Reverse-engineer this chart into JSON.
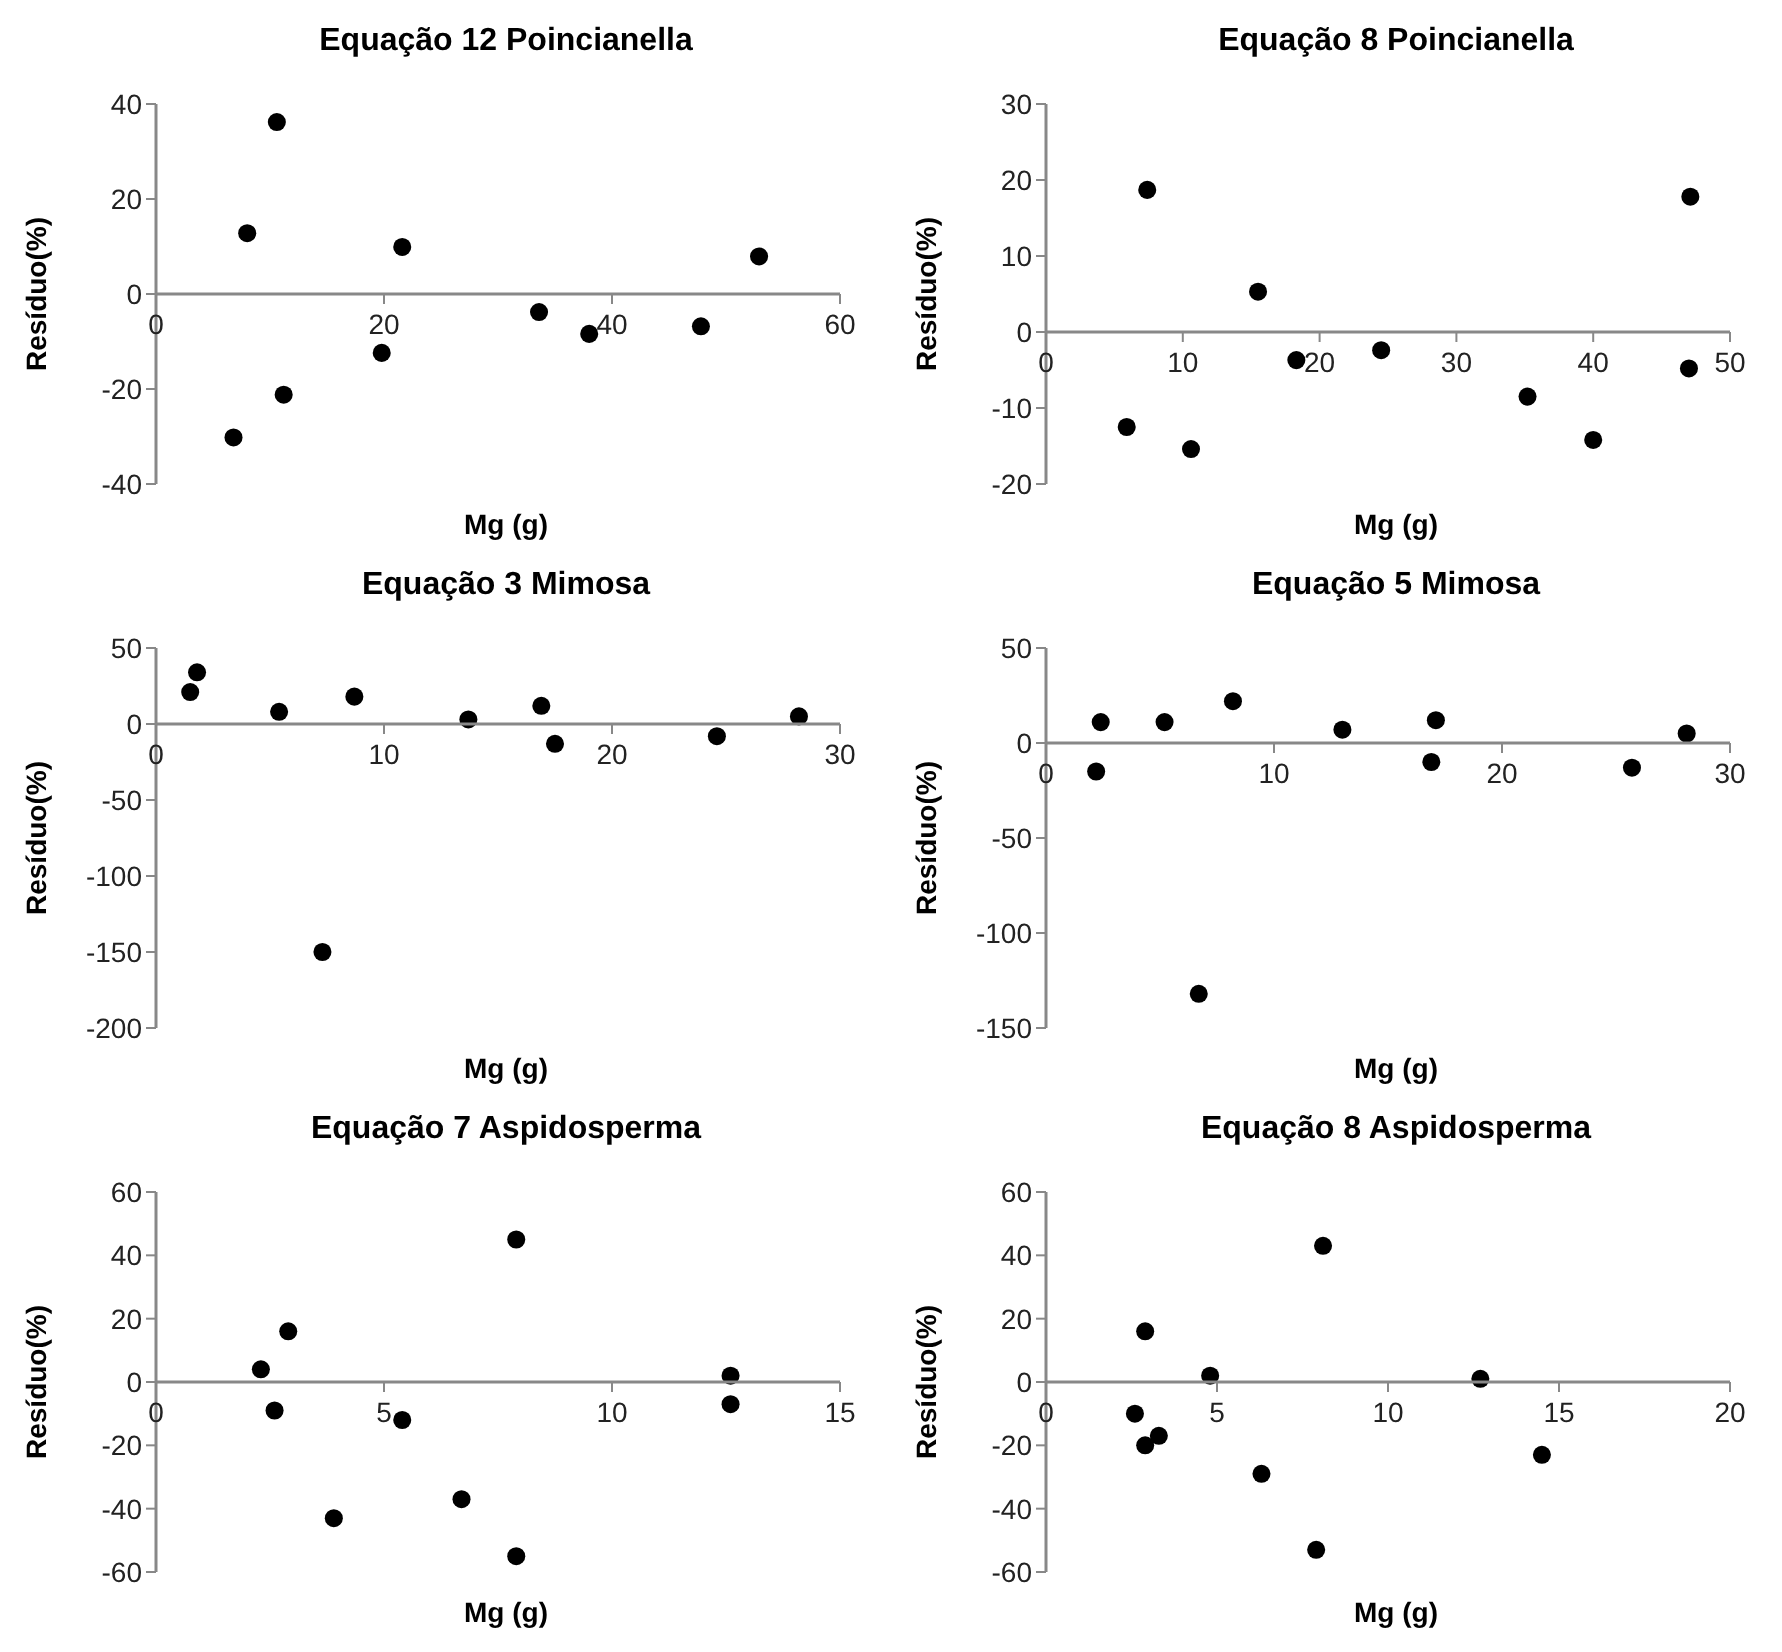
{
  "chart_data": [
    {
      "type": "scatter",
      "title": "Equação 12 Poincianella",
      "xlabel": "Mg (g)",
      "ylabel": "Resíduo(%)",
      "xlim": [
        0,
        60
      ],
      "xticks": [
        0,
        20,
        40,
        60
      ],
      "ylim": [
        -40,
        40
      ],
      "yticks": [
        -40,
        -20,
        0,
        20,
        40
      ],
      "marker": "circle",
      "color": "#000000",
      "x": [
        6.8,
        8.0,
        10.6,
        11.2,
        19.8,
        21.6,
        33.6,
        38.0,
        47.8,
        52.9
      ],
      "values": [
        -30.2,
        12.8,
        36.2,
        -21.2,
        -12.4,
        9.9,
        -3.8,
        -8.4,
        -6.8,
        7.9
      ]
    },
    {
      "type": "scatter",
      "title": "Equação 8 Poincianella",
      "xlabel": "Mg (g)",
      "ylabel": "Resíduo(%)",
      "xlim": [
        0,
        50
      ],
      "xticks": [
        0,
        10,
        20,
        30,
        40,
        50
      ],
      "ylim": [
        -20,
        30
      ],
      "yticks": [
        -20,
        -10,
        0,
        10,
        20,
        30
      ],
      "marker": "circle",
      "color": "#000000",
      "x": [
        5.9,
        7.4,
        10.6,
        15.5,
        18.3,
        24.5,
        35.2,
        40.0,
        47.1,
        47.0
      ],
      "values": [
        -12.5,
        18.7,
        -15.4,
        5.3,
        -3.7,
        -2.4,
        -8.5,
        -14.2,
        17.8,
        -4.8
      ]
    },
    {
      "type": "scatter",
      "title": "Equação 3 Mimosa",
      "xlabel": "Mg (g)",
      "ylabel": "Resíduo(%)",
      "xlim": [
        0,
        30
      ],
      "xticks": [
        0,
        10,
        20,
        30
      ],
      "ylim": [
        -200,
        50
      ],
      "yticks": [
        -200,
        -150,
        -100,
        -50,
        0,
        50
      ],
      "marker": "circle",
      "color": "#000000",
      "x": [
        1.5,
        1.8,
        5.4,
        7.3,
        8.7,
        13.7,
        16.9,
        17.5,
        24.6,
        28.2
      ],
      "values": [
        21,
        34,
        8,
        -150,
        18,
        3,
        12,
        -13,
        -8,
        5
      ]
    },
    {
      "type": "scatter",
      "title": "Equação 5 Mimosa",
      "xlabel": "Mg (g)",
      "ylabel": "Resíduo(%)",
      "xlim": [
        0,
        30
      ],
      "xticks": [
        0,
        10,
        20,
        30
      ],
      "ylim": [
        -150,
        50
      ],
      "yticks": [
        -150,
        -100,
        -50,
        0,
        50
      ],
      "marker": "circle",
      "color": "#000000",
      "x": [
        2.2,
        2.4,
        5.2,
        6.7,
        8.2,
        13.0,
        16.9,
        17.1,
        25.7,
        28.1
      ],
      "values": [
        -15,
        11,
        11,
        -132,
        22,
        7,
        -10,
        12,
        -13,
        5
      ]
    },
    {
      "type": "scatter",
      "title": "Equação 7 Aspidosperma",
      "xlabel": "Mg (g)",
      "ylabel": "Resíduo(%)",
      "xlim": [
        0,
        15
      ],
      "xticks": [
        0,
        5,
        10,
        15
      ],
      "ylim": [
        -60,
        60
      ],
      "yticks": [
        -60,
        -40,
        -20,
        0,
        20,
        40,
        60
      ],
      "marker": "circle",
      "color": "#000000",
      "x": [
        2.3,
        2.6,
        2.9,
        3.9,
        5.4,
        6.7,
        7.9,
        7.9,
        12.6,
        12.6
      ],
      "values": [
        4,
        -9,
        16,
        -43,
        -12,
        -37,
        45,
        -55,
        2,
        -7
      ]
    },
    {
      "type": "scatter",
      "title": "Equação 8 Aspidosperma",
      "xlabel": "Mg (g)",
      "ylabel": "Resíduo(%)",
      "xlim": [
        0,
        20
      ],
      "xticks": [
        0,
        5,
        10,
        15,
        20
      ],
      "ylim": [
        -60,
        60
      ],
      "yticks": [
        -60,
        -40,
        -20,
        0,
        20,
        40,
        60
      ],
      "marker": "circle",
      "color": "#000000",
      "x": [
        2.6,
        2.9,
        2.9,
        3.3,
        4.8,
        6.3,
        7.9,
        8.1,
        12.7,
        14.5
      ],
      "values": [
        -10,
        16,
        -20,
        -17,
        2,
        -29,
        -53,
        43,
        1,
        -23
      ]
    }
  ]
}
